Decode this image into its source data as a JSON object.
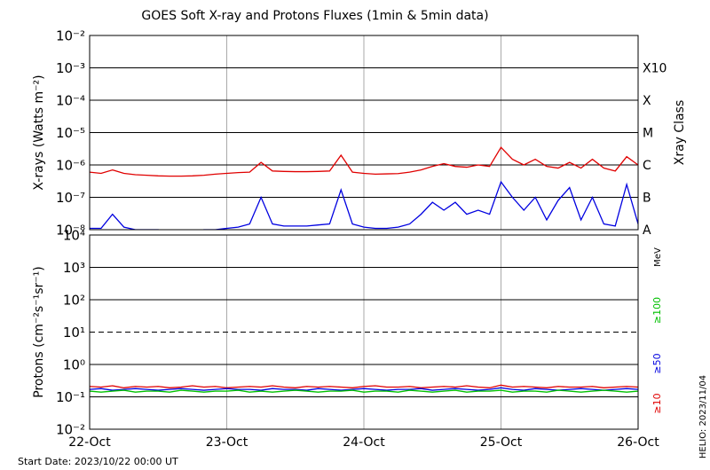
{
  "chart_data": [
    {
      "type": "line",
      "title": "GOES Soft X-ray and Protons Fluxes   (1min & 5min data)",
      "ylabel": "X-rays (Watts m⁻²)",
      "y2label": "Xray Class",
      "log_y": true,
      "xlim": [
        0,
        96
      ],
      "xticks": [
        0,
        24,
        48,
        72,
        96
      ],
      "ylim": [
        1e-08,
        0.01
      ],
      "yticks": [
        {
          "value": 1e-08,
          "label": "10⁻⁸"
        },
        {
          "value": 1e-07,
          "label": "10⁻⁷"
        },
        {
          "value": 1e-06,
          "label": "10⁻⁶"
        },
        {
          "value": 1e-05,
          "label": "10⁻⁵"
        },
        {
          "value": 0.0001,
          "label": "10⁻⁴"
        },
        {
          "value": 0.001,
          "label": "10⁻³"
        },
        {
          "value": 0.01,
          "label": "10⁻²"
        }
      ],
      "y2ticks": [
        {
          "value": 1e-08,
          "label": "A"
        },
        {
          "value": 1e-07,
          "label": "B"
        },
        {
          "value": 1e-06,
          "label": "C"
        },
        {
          "value": 1e-05,
          "label": "M"
        },
        {
          "value": 0.0001,
          "label": "X"
        },
        {
          "value": 0.001,
          "label": "X10"
        }
      ],
      "x": [
        0,
        2,
        4,
        6,
        8,
        10,
        12,
        14,
        16,
        18,
        20,
        22,
        24,
        26,
        28,
        30,
        32,
        34,
        36,
        38,
        40,
        42,
        44,
        46,
        48,
        50,
        52,
        54,
        56,
        58,
        60,
        62,
        64,
        66,
        68,
        70,
        72,
        74,
        76,
        78,
        80,
        82,
        84,
        86,
        88,
        90,
        92,
        94,
        96
      ],
      "series": [
        {
          "color": "#e00000",
          "values": [
            6e-07,
            5.5e-07,
            7e-07,
            5.5e-07,
            5e-07,
            4.8e-07,
            4.6e-07,
            4.5e-07,
            4.5e-07,
            4.6e-07,
            4.8e-07,
            5.2e-07,
            5.5e-07,
            5.8e-07,
            6e-07,
            1.2e-06,
            6.5e-07,
            6.3e-07,
            6.2e-07,
            6.2e-07,
            6.3e-07,
            6.5e-07,
            2e-06,
            6e-07,
            5.5e-07,
            5.2e-07,
            5.3e-07,
            5.4e-07,
            6e-07,
            7e-07,
            9e-07,
            1.1e-06,
            9e-07,
            8.5e-07,
            1e-06,
            9e-07,
            3.5e-06,
            1.5e-06,
            1e-06,
            1.5e-06,
            9e-07,
            8e-07,
            1.2e-06,
            8e-07,
            1.5e-06,
            8e-07,
            6.5e-07,
            1.8e-06,
            1e-06
          ]
        },
        {
          "color": "#0000e0",
          "values": [
            1.1e-08,
            1.1e-08,
            3e-08,
            1.2e-08,
            1e-08,
            1e-08,
            1e-08,
            9e-09,
            9e-09,
            9e-09,
            1e-08,
            1e-08,
            1.1e-08,
            1.2e-08,
            1.5e-08,
            1e-07,
            1.5e-08,
            1.3e-08,
            1.3e-08,
            1.3e-08,
            1.4e-08,
            1.5e-08,
            1.7e-07,
            1.5e-08,
            1.2e-08,
            1.1e-08,
            1.1e-08,
            1.2e-08,
            1.5e-08,
            3e-08,
            7e-08,
            4e-08,
            7e-08,
            3e-08,
            4e-08,
            3e-08,
            3e-07,
            1e-07,
            4e-08,
            1e-07,
            2e-08,
            8e-08,
            2e-07,
            2e-08,
            1e-07,
            1.5e-08,
            1.3e-08,
            2.5e-07,
            1.5e-08
          ]
        }
      ]
    },
    {
      "type": "line",
      "ylabel": "Protons (cm⁻²s⁻¹sr⁻¹)",
      "legend_title": "MeV",
      "log_y": true,
      "dashed_line": 10,
      "xlim": [
        0,
        96
      ],
      "xticks": [
        {
          "value": 0,
          "label": "22-Oct"
        },
        {
          "value": 24,
          "label": "23-Oct"
        },
        {
          "value": 48,
          "label": "24-Oct"
        },
        {
          "value": 72,
          "label": "25-Oct"
        },
        {
          "value": 96,
          "label": "26-Oct"
        }
      ],
      "ylim": [
        0.01,
        10000
      ],
      "yticks": [
        {
          "value": 0.01,
          "label": "10⁻²"
        },
        {
          "value": 0.1,
          "label": "10⁻¹"
        },
        {
          "value": 1,
          "label": "10⁰"
        },
        {
          "value": 10,
          "label": "10¹"
        },
        {
          "value": 100,
          "label": "10²"
        },
        {
          "value": 1000,
          "label": "10³"
        },
        {
          "value": 10000,
          "label": "10⁴"
        }
      ],
      "x": [
        0,
        2,
        4,
        6,
        8,
        10,
        12,
        14,
        16,
        18,
        20,
        22,
        24,
        26,
        28,
        30,
        32,
        34,
        36,
        38,
        40,
        42,
        44,
        46,
        48,
        50,
        52,
        54,
        56,
        58,
        60,
        62,
        64,
        66,
        68,
        70,
        72,
        74,
        76,
        78,
        80,
        82,
        84,
        86,
        88,
        90,
        92,
        94,
        96
      ],
      "series": [
        {
          "name": "≥10",
          "color": "#e00000",
          "values": [
            0.21,
            0.2,
            0.22,
            0.19,
            0.21,
            0.2,
            0.21,
            0.19,
            0.2,
            0.22,
            0.2,
            0.21,
            0.19,
            0.2,
            0.21,
            0.2,
            0.22,
            0.2,
            0.19,
            0.21,
            0.2,
            0.21,
            0.2,
            0.19,
            0.21,
            0.22,
            0.2,
            0.2,
            0.21,
            0.19,
            0.2,
            0.21,
            0.2,
            0.22,
            0.2,
            0.19,
            0.23,
            0.2,
            0.21,
            0.2,
            0.19,
            0.21,
            0.2,
            0.2,
            0.21,
            0.19,
            0.2,
            0.21,
            0.2
          ]
        },
        {
          "name": "≥50",
          "color": "#0000e0",
          "values": [
            0.17,
            0.18,
            0.16,
            0.17,
            0.18,
            0.17,
            0.16,
            0.17,
            0.18,
            0.17,
            0.16,
            0.17,
            0.18,
            0.17,
            0.17,
            0.16,
            0.18,
            0.17,
            0.17,
            0.16,
            0.18,
            0.17,
            0.16,
            0.17,
            0.18,
            0.17,
            0.16,
            0.17,
            0.17,
            0.18,
            0.16,
            0.17,
            0.18,
            0.17,
            0.16,
            0.17,
            0.19,
            0.17,
            0.16,
            0.18,
            0.17,
            0.16,
            0.17,
            0.18,
            0.17,
            0.16,
            0.17,
            0.18,
            0.17
          ]
        },
        {
          "name": "≥100",
          "color": "#00c000",
          "values": [
            0.15,
            0.14,
            0.15,
            0.16,
            0.14,
            0.15,
            0.15,
            0.14,
            0.16,
            0.15,
            0.14,
            0.15,
            0.15,
            0.16,
            0.14,
            0.15,
            0.14,
            0.15,
            0.16,
            0.15,
            0.14,
            0.15,
            0.15,
            0.16,
            0.14,
            0.15,
            0.15,
            0.14,
            0.16,
            0.15,
            0.14,
            0.15,
            0.16,
            0.14,
            0.15,
            0.15,
            0.16,
            0.14,
            0.15,
            0.15,
            0.14,
            0.16,
            0.15,
            0.14,
            0.15,
            0.16,
            0.15,
            0.14,
            0.15
          ]
        }
      ]
    }
  ],
  "footer": {
    "start_date": "Start Date: 2023/10/22 00:00 UT",
    "credit": "HELIO: 2023/11/04"
  }
}
